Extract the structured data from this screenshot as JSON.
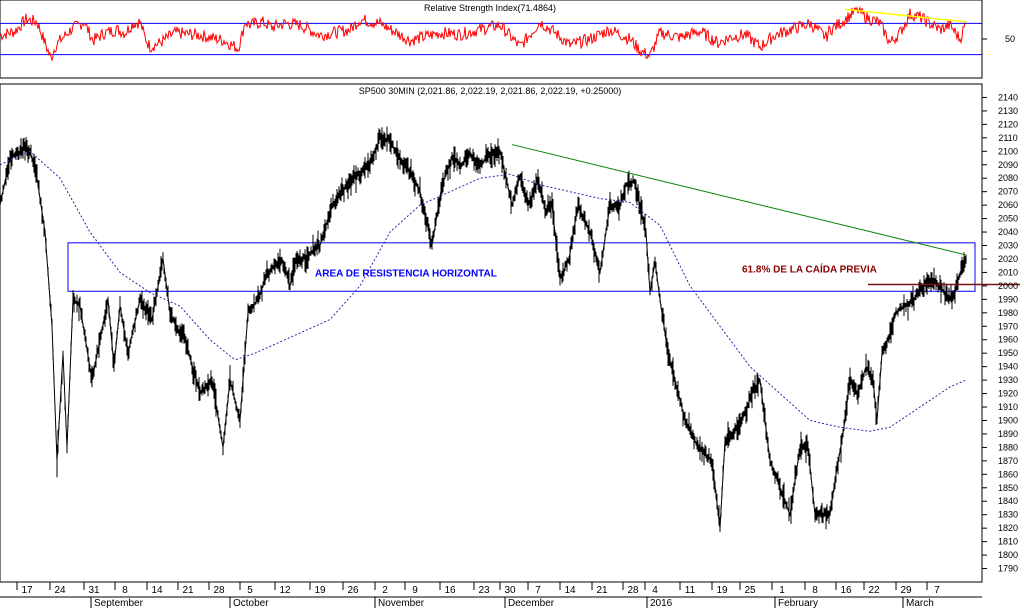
{
  "chart_data": [
    {
      "type": "line",
      "title": "Relative Strength Index(71.4864)",
      "ylabel": "",
      "ytick_labels": [
        "50"
      ],
      "ytick_values": [
        50
      ],
      "ylim": [
        0,
        100
      ],
      "reference_lines": [
        70,
        30
      ],
      "grid": false,
      "series": [
        {
          "color": "#ff0000",
          "x_index": [
            0,
            15,
            26,
            37,
            48,
            51,
            55,
            60,
            71,
            84,
            93,
            105,
            117,
            125,
            133,
            140,
            145,
            150,
            160,
            175,
            200,
            224,
            238,
            242,
            245,
            250,
            262,
            272,
            285,
            300,
            320,
            342,
            350,
            360,
            380,
            410,
            440,
            460,
            480,
            500,
            520,
            540,
            555,
            570,
            590,
            610,
            630,
            640,
            650,
            660,
            680,
            700,
            718,
            730,
            745,
            760,
            775,
            790,
            810,
            826,
            830,
            840,
            850,
            857,
            866,
            880,
            890,
            900,
            910,
            920,
            930,
            940,
            950,
            960,
            966
          ],
          "values": [
            55,
            60,
            75,
            72,
            35,
            25,
            40,
            48,
            62,
            72,
            48,
            58,
            62,
            58,
            70,
            72,
            52,
            40,
            45,
            58,
            55,
            48,
            38,
            55,
            72,
            68,
            72,
            65,
            70,
            68,
            55,
            60,
            62,
            75,
            70,
            48,
            58,
            56,
            62,
            68,
            40,
            72,
            58,
            42,
            50,
            62,
            50,
            35,
            28,
            58,
            52,
            60,
            45,
            52,
            56,
            40,
            55,
            62,
            70,
            52,
            62,
            70,
            80,
            88,
            78,
            70,
            45,
            58,
            82,
            78,
            70,
            62,
            68,
            50,
            71
          ]
        }
      ],
      "annotations": [
        {
          "type": "trendline",
          "color": "#ffff00",
          "from": [
            845,
            88
          ],
          "to": [
            966,
            72
          ]
        }
      ]
    },
    {
      "type": "line",
      "title": "SP500 30MIN (2,021.86, 2,022.19, 2,021.86, 2,022.19, +0.25000)",
      "xlabel": "",
      "ylabel": "",
      "ylim": [
        1780,
        2150
      ],
      "ytick_values": [
        1790,
        1800,
        1810,
        1820,
        1830,
        1840,
        1850,
        1860,
        1870,
        1880,
        1890,
        1900,
        1910,
        1920,
        1930,
        1940,
        1950,
        1960,
        1970,
        1980,
        1990,
        2000,
        2010,
        2020,
        2030,
        2040,
        2050,
        2060,
        2070,
        2080,
        2090,
        2100,
        2110,
        2120,
        2130,
        2140
      ],
      "ytick_labels": [
        "1790",
        "1800",
        "1810",
        "1820",
        "1830",
        "1840",
        "1850",
        "1860",
        "1870",
        "1880",
        "1890",
        "1900",
        "1910",
        "1920",
        "1930",
        "1940",
        "1950",
        "1960",
        "1970",
        "1980",
        "1990",
        "2000",
        "2010",
        "2020",
        "2030",
        "2040",
        "2050",
        "2060",
        "2070",
        "2080",
        "2090",
        "2100",
        "2110",
        "2120",
        "2130",
        "2140"
      ],
      "xtick_labels": [
        "17",
        "24",
        "31",
        "8",
        "14",
        "21",
        "28",
        "5",
        "12",
        "19",
        "26",
        "2",
        "9",
        "16",
        "23",
        "30",
        "7",
        "14",
        "21",
        "28",
        "4",
        "11",
        "19",
        "25",
        "1",
        "8",
        "16",
        "22",
        "29",
        "7"
      ],
      "xtick_positions": [
        27,
        60,
        94,
        125,
        157,
        188,
        219,
        250,
        285,
        320,
        353,
        385,
        415,
        450,
        484,
        510,
        538,
        570,
        602,
        633,
        655,
        690,
        722,
        750,
        782,
        815,
        846,
        874,
        906,
        937
      ],
      "month_labels": [
        "September",
        "October",
        "November",
        "December",
        "2016",
        "February",
        "March"
      ],
      "month_positions": [
        94,
        233,
        378,
        508,
        650,
        778,
        906
      ],
      "grid": false,
      "series": [
        {
          "color": "#000000",
          "x_index": [
            0,
            10,
            27,
            35,
            45,
            52,
            57,
            63,
            67,
            73,
            80,
            92,
            100,
            108,
            114,
            120,
            128,
            140,
            152,
            163,
            170,
            176,
            185,
            200,
            212,
            223,
            230,
            240,
            248,
            258,
            268,
            282,
            290,
            296,
            303,
            320,
            332,
            342,
            354,
            370,
            380,
            389,
            400,
            412,
            420,
            432,
            442,
            452,
            462,
            470,
            478,
            488,
            500,
            512,
            520,
            528,
            538,
            546,
            552,
            560,
            569,
            578,
            590,
            600,
            610,
            620,
            626,
            634,
            640,
            646,
            650,
            655,
            660,
            668,
            675,
            685,
            698,
            712,
            720,
            725,
            733,
            742,
            752,
            760,
            770,
            780,
            790,
            800,
            808,
            815,
            823,
            830,
            836,
            843,
            850,
            858,
            866,
            873,
            877,
            882,
            888,
            896,
            904,
            914,
            924,
            934,
            944,
            952,
            958,
            966
          ],
          "values": [
            2060,
            2095,
            2103,
            2090,
            2040,
            1970,
            1870,
            1950,
            1880,
            1990,
            1985,
            1930,
            1960,
            1990,
            1940,
            1985,
            1950,
            1990,
            1975,
            2020,
            1980,
            1970,
            1960,
            1920,
            1930,
            1880,
            1930,
            1900,
            1980,
            1990,
            2010,
            2020,
            2000,
            2020,
            2020,
            2030,
            2060,
            2070,
            2080,
            2090,
            2110,
            2108,
            2095,
            2082,
            2070,
            2030,
            2075,
            2095,
            2090,
            2098,
            2088,
            2096,
            2100,
            2060,
            2082,
            2060,
            2078,
            2055,
            2060,
            2005,
            2020,
            2060,
            2040,
            2010,
            2060,
            2060,
            2075,
            2078,
            2060,
            2040,
            1995,
            2018,
            1990,
            1950,
            1930,
            1900,
            1880,
            1870,
            1820,
            1885,
            1890,
            1900,
            1920,
            1930,
            1870,
            1850,
            1830,
            1880,
            1880,
            1830,
            1830,
            1830,
            1860,
            1890,
            1930,
            1920,
            1940,
            1930,
            1900,
            1950,
            1960,
            1980,
            1985,
            1990,
            2000,
            2005,
            1995,
            1990,
            2005,
            2022
          ]
        },
        {
          "color": "#3b1fa8",
          "dashed": true,
          "x_index": [
            0,
            30,
            60,
            90,
            120,
            150,
            180,
            210,
            235,
            255,
            270,
            300,
            330,
            360,
            390,
            420,
            450,
            480,
            510,
            540,
            570,
            600,
            630,
            660,
            690,
            720,
            750,
            780,
            810,
            840,
            870,
            890,
            910,
            930,
            950,
            966
          ],
          "values": [
            2090,
            2100,
            2080,
            2040,
            2010,
            1995,
            1985,
            1960,
            1945,
            1950,
            1955,
            1965,
            1975,
            2000,
            2040,
            2060,
            2070,
            2080,
            2083,
            2075,
            2070,
            2065,
            2062,
            2045,
            2000,
            1970,
            1940,
            1920,
            1900,
            1895,
            1892,
            1895,
            1905,
            1915,
            1925,
            1930
          ]
        }
      ],
      "annotations": [
        {
          "type": "trendline",
          "color": "#008000",
          "from": [
            512,
            2105
          ],
          "to": [
            966,
            2023
          ]
        },
        {
          "type": "rectangle",
          "color": "#0000ff",
          "x_from": 68,
          "x_to": 975,
          "y_from": 1996,
          "y_to": 2032
        },
        {
          "type": "hline",
          "color": "#7a1010",
          "x_from": 868,
          "x_to": 1020,
          "y": 2001
        },
        {
          "text": "AREA DE RESISTENCIA HORIZONTAL",
          "color": "#0000ff",
          "x": 315,
          "y": 2007
        },
        {
          "text": "61.8% DE LA CAÍDA PREVIA",
          "color": "#8b0000",
          "x": 742,
          "y": 2010
        }
      ]
    }
  ]
}
